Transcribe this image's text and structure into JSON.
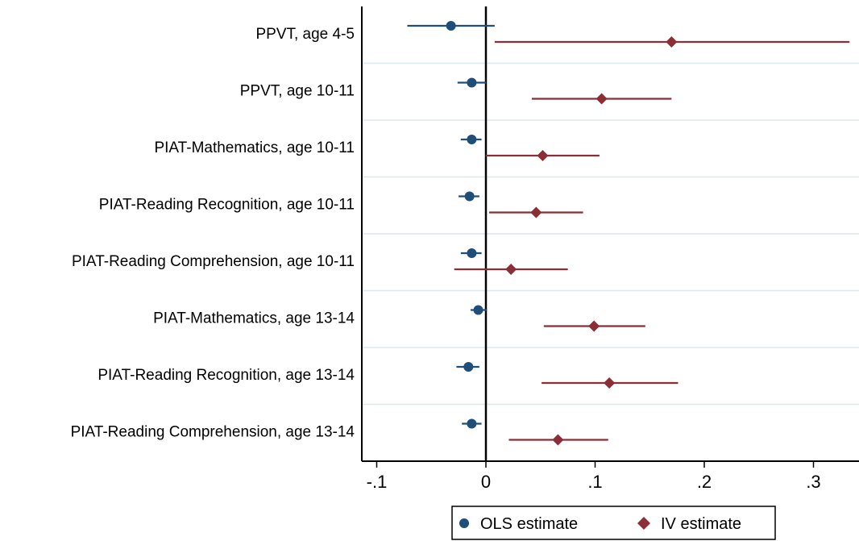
{
  "chart_data": {
    "type": "scatter",
    "orientation": "horizontal",
    "categories": [
      "PPVT, age 4-5",
      "PPVT, age 10-11",
      "PIAT-Mathematics, age 10-11",
      "PIAT-Reading Recognition, age 10-11",
      "PIAT-Reading Comprehension, age 10-11",
      "PIAT-Mathematics, age 13-14",
      "PIAT-Reading Recognition, age 13-14",
      "PIAT-Reading Comprehension, age 13-14"
    ],
    "series": [
      {
        "name": "OLS estimate",
        "color": "#1f4e79",
        "marker": "circle",
        "estimates": [
          -0.032,
          -0.013,
          -0.013,
          -0.015,
          -0.013,
          -0.007,
          -0.016,
          -0.013
        ],
        "ci_low": [
          -0.072,
          -0.026,
          -0.023,
          -0.025,
          -0.023,
          -0.014,
          -0.027,
          -0.022
        ],
        "ci_high": [
          0.008,
          0.0,
          -0.004,
          -0.006,
          -0.004,
          0.001,
          -0.006,
          -0.004
        ]
      },
      {
        "name": "IV estimate",
        "color": "#8b2e35",
        "marker": "diamond",
        "estimates": [
          0.17,
          0.106,
          0.052,
          0.046,
          0.023,
          0.099,
          0.113,
          0.066
        ],
        "ci_low": [
          0.008,
          0.042,
          0.0,
          0.003,
          -0.029,
          0.053,
          0.051,
          0.021
        ],
        "ci_high": [
          0.333,
          0.17,
          0.104,
          0.089,
          0.075,
          0.146,
          0.176,
          0.112
        ]
      }
    ],
    "xticks": [
      -0.1,
      0,
      0.1,
      0.2,
      0.3
    ],
    "xtick_labels": [
      "-.1",
      "0",
      ".1",
      ".2",
      ".3"
    ],
    "xlim": [
      -0.11,
      0.34
    ],
    "reference_line": 0,
    "grid": "horizontal",
    "legend_position": "bottom"
  }
}
